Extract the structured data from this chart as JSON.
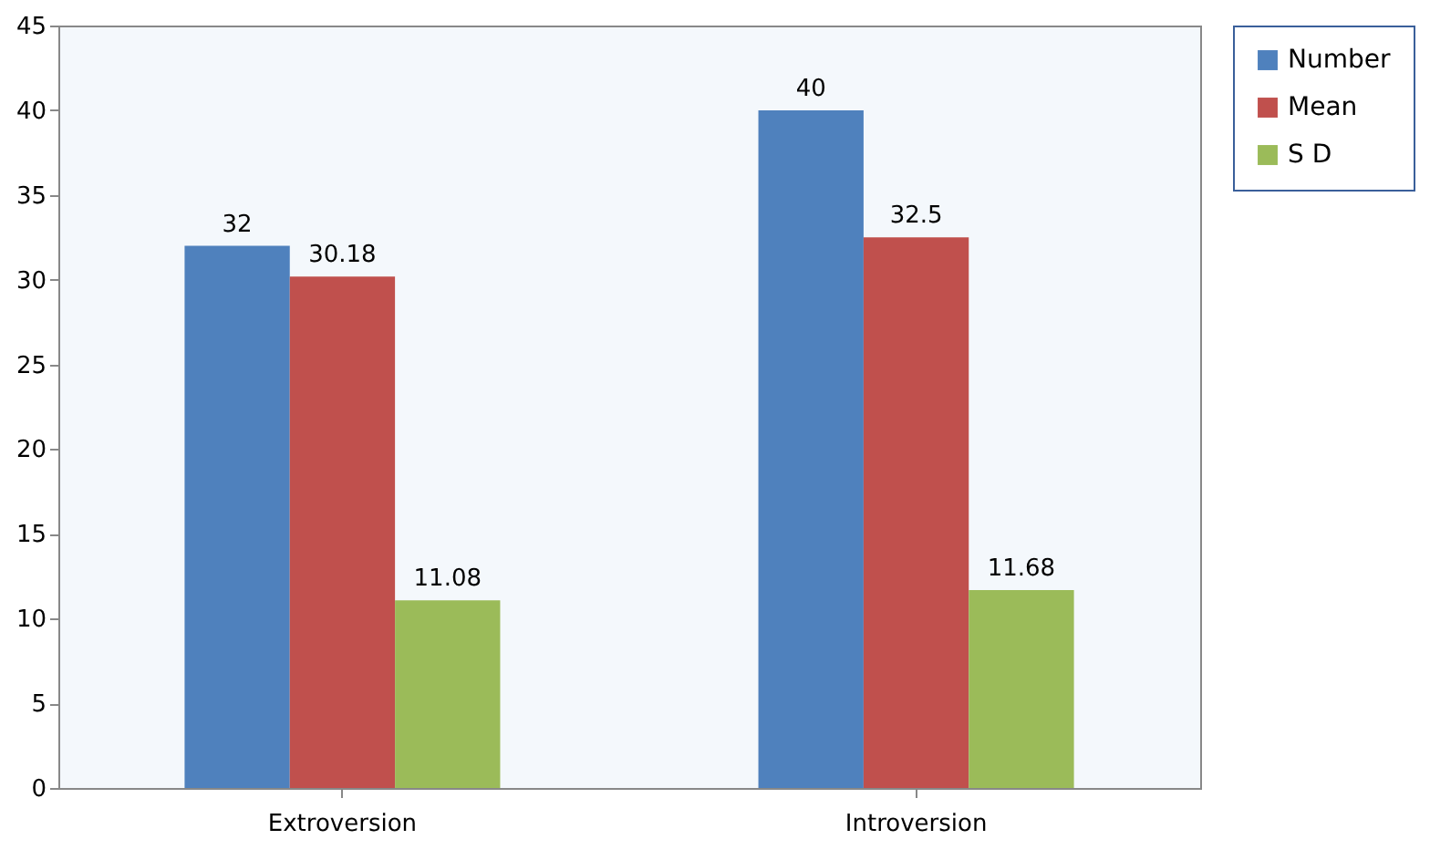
{
  "chart_data": {
    "type": "bar",
    "categories": [
      "Extroversion",
      "Introversion"
    ],
    "series": [
      {
        "name": "Number",
        "color": "#4f81bd",
        "values": [
          32,
          40
        ]
      },
      {
        "name": "Mean",
        "color": "#c0504d",
        "values": [
          30.18,
          32.5
        ]
      },
      {
        "name": "S D",
        "color": "#9bbb59",
        "values": [
          11.08,
          11.68
        ]
      }
    ],
    "ylim": [
      0,
      45
    ],
    "yticks": [
      0,
      5,
      10,
      15,
      20,
      25,
      30,
      35,
      40,
      45
    ],
    "grid": false,
    "legend": "right",
    "data_labels": true
  }
}
